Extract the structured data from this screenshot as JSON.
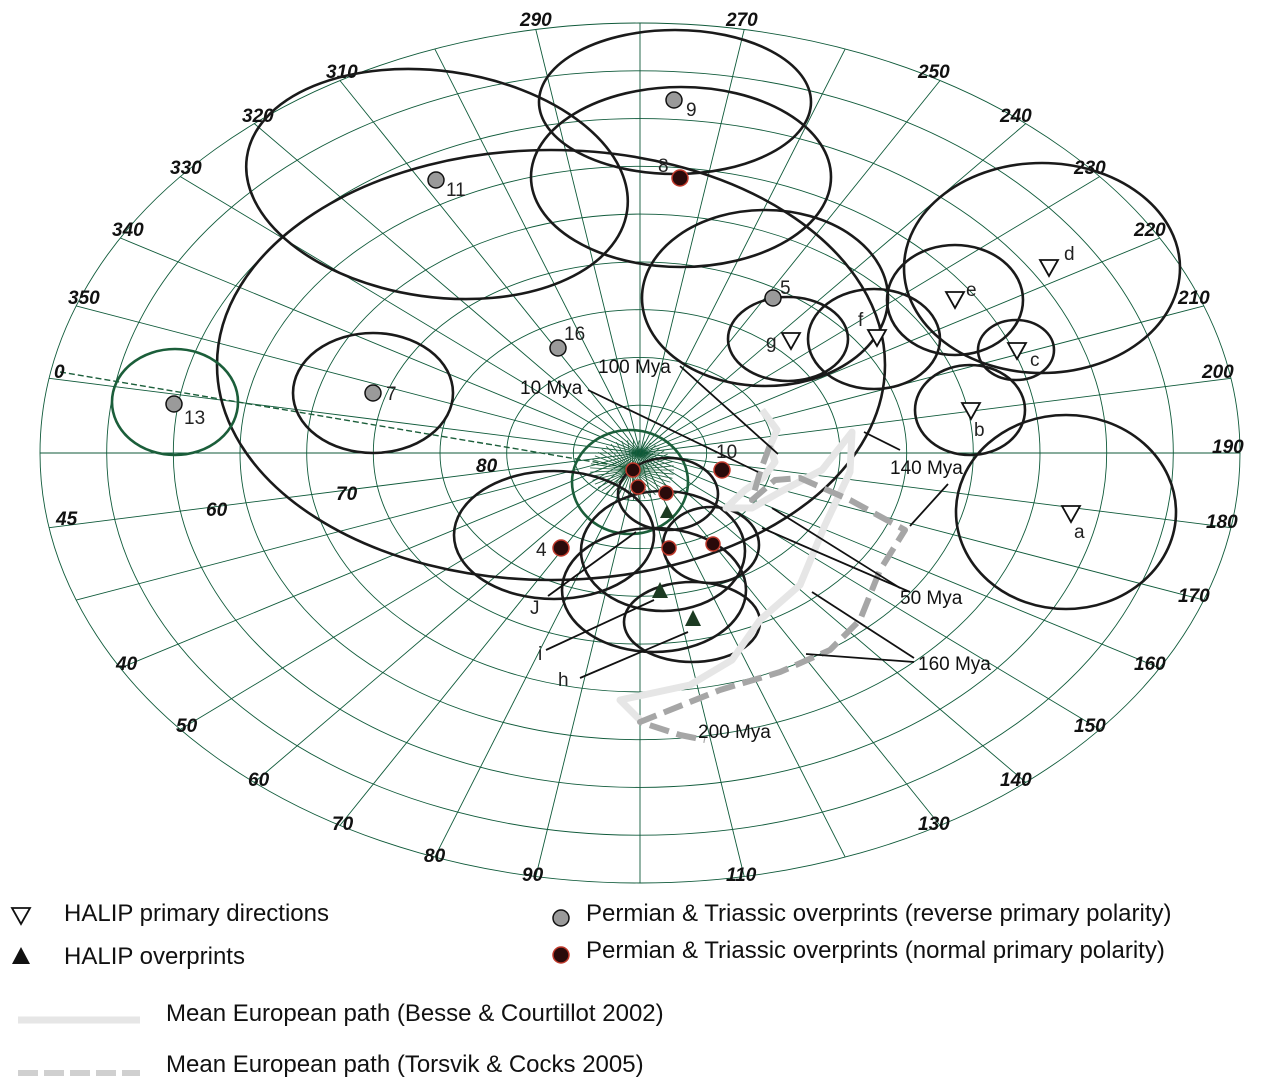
{
  "degree_labels_left": [
    "0",
    "350",
    "340",
    "330",
    "320",
    "310",
    "290"
  ],
  "degree_labels_top": [
    "270",
    "250",
    "240",
    "230",
    "220",
    "210",
    "200",
    "190",
    "180",
    "170",
    "160",
    "150",
    "140",
    "130",
    "110",
    "90"
  ],
  "degree_labels_bottom_left": [
    "45",
    "40",
    "50",
    "60",
    "70",
    "80"
  ],
  "degree_labels_inner": [
    "80",
    "70",
    "60"
  ],
  "points": {
    "reverse": [
      "9",
      "11",
      "5",
      "16",
      "7",
      "13"
    ],
    "normal": [
      "8",
      "10",
      "4"
    ],
    "primary": [
      "a",
      "b",
      "c",
      "d",
      "e",
      "f",
      "g"
    ],
    "overprint_labels": [
      "h",
      "i",
      "J"
    ]
  },
  "annotations": {
    "a100": "100 Mya",
    "a10": "10 Mya",
    "a140": "140 Mya",
    "a50": "50 Mya",
    "a160": "160 Mya",
    "a200": "200 Mya"
  },
  "legend": {
    "primary": "HALIP primary directions",
    "overprints": "HALIP overprints",
    "reverse": "Permian & Triassic overprints (reverse primary polarity)",
    "normal": "Permian & Triassic overprints (normal primary polarity)",
    "besse": "Mean European path (Besse & Courtillot 2002)",
    "torsvik": "Mean European path (Torsvik & Cocks 2005)"
  },
  "colors": {
    "grid": "#0f5a3a",
    "reverse_fill": "#9a9a9a",
    "normal_fill": "#2a0a0a",
    "normal_stroke": "#c0392b",
    "besse_path": "#e6e6e6",
    "torsvik_path": "#a6a6a6"
  }
}
